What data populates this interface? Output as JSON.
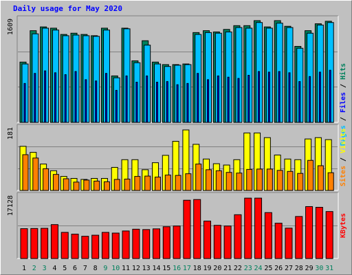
{
  "title": "Daily usage for May 2020",
  "colors": {
    "hits": "#00805c",
    "files": "#0000ff",
    "pages": "#00c0ff",
    "visits": "#ffff00",
    "sites": "#ff8000",
    "kbytes": "#ff0000",
    "weekend_label": "#00805c",
    "weekday_label": "#000000"
  },
  "chart_data": [
    {
      "type": "bar",
      "panel": "hits-files-pages",
      "y_max_label": "1609",
      "ylim": [
        0,
        1609
      ],
      "categories": [
        "1",
        "2",
        "3",
        "4",
        "5",
        "6",
        "7",
        "8",
        "9",
        "10",
        "11",
        "12",
        "13",
        "14",
        "15",
        "16",
        "17",
        "18",
        "19",
        "20",
        "21",
        "22",
        "23",
        "24",
        "25",
        "26",
        "27",
        "28",
        "29",
        "30",
        "31"
      ],
      "weekend_days": [
        "2",
        "3",
        "9",
        "10",
        "16",
        "17",
        "23",
        "24",
        "30",
        "31"
      ],
      "legend": [
        {
          "label": "Pages",
          "color": "#00c0ff"
        },
        {
          "label": "Files",
          "color": "#0000ff"
        },
        {
          "label": "Hits",
          "color": "#00805c"
        }
      ],
      "series": [
        {
          "name": "Hits",
          "values": [
            960,
            1460,
            1520,
            1500,
            1400,
            1420,
            1400,
            1380,
            1500,
            740,
            1500,
            980,
            1300,
            960,
            920,
            920,
            930,
            1430,
            1460,
            1440,
            1480,
            1540,
            1540,
            1620,
            1520,
            1620,
            1530,
            1210,
            1460,
            1570,
            1610
          ]
        },
        {
          "name": "Files",
          "values": [
            620,
            780,
            820,
            790,
            760,
            810,
            680,
            660,
            780,
            510,
            740,
            640,
            740,
            640,
            650,
            600,
            620,
            780,
            680,
            740,
            720,
            700,
            750,
            810,
            800,
            810,
            790,
            650,
            730,
            800,
            830
          ]
        },
        {
          "name": "Pages",
          "values": [
            930,
            1410,
            1500,
            1470,
            1380,
            1390,
            1380,
            1370,
            1470,
            710,
            1490,
            950,
            1230,
            930,
            890,
            910,
            920,
            1400,
            1430,
            1420,
            1440,
            1510,
            1500,
            1590,
            1500,
            1580,
            1510,
            1180,
            1420,
            1550,
            1590
          ]
        }
      ]
    },
    {
      "type": "bar",
      "panel": "sites-visits",
      "y_max_label": "181",
      "ylim": [
        0,
        181
      ],
      "categories": [
        "1",
        "2",
        "3",
        "4",
        "5",
        "6",
        "7",
        "8",
        "9",
        "10",
        "11",
        "12",
        "13",
        "14",
        "15",
        "16",
        "17",
        "18",
        "19",
        "20",
        "21",
        "22",
        "23",
        "24",
        "25",
        "26",
        "27",
        "28",
        "29",
        "30",
        "31"
      ],
      "legend": [
        {
          "label": "Sites",
          "color": "#ff8000"
        },
        {
          "label": "Visits",
          "color": "#ffff00"
        }
      ],
      "series": [
        {
          "name": "Visits",
          "values": [
            132,
            114,
            79,
            59,
            42,
            36,
            33,
            36,
            36,
            69,
            92,
            92,
            62,
            83,
            105,
            147,
            181,
            138,
            94,
            80,
            76,
            92,
            172,
            172,
            158,
            106,
            94,
            92,
            154,
            158,
            152
          ]
        },
        {
          "name": "Sites",
          "values": [
            107,
            97,
            65,
            48,
            35,
            25,
            31,
            28,
            26,
            33,
            34,
            42,
            43,
            40,
            46,
            45,
            50,
            79,
            62,
            59,
            54,
            52,
            63,
            64,
            64,
            60,
            57,
            51,
            90,
            74,
            53
          ]
        }
      ]
    },
    {
      "type": "bar",
      "panel": "kbytes",
      "y_max_label": "17128",
      "ylim": [
        0,
        17128
      ],
      "categories": [
        "1",
        "2",
        "3",
        "4",
        "5",
        "6",
        "7",
        "8",
        "9",
        "10",
        "11",
        "12",
        "13",
        "14",
        "15",
        "16",
        "17",
        "18",
        "19",
        "20",
        "21",
        "22",
        "23",
        "24",
        "25",
        "26",
        "27",
        "28",
        "29",
        "30",
        "31"
      ],
      "legend": [
        {
          "label": "KBytes",
          "color": "#ff0000"
        }
      ],
      "series": [
        {
          "name": "KBytes",
          "values": [
            8450,
            8500,
            8550,
            9600,
            7400,
            6900,
            6300,
            6600,
            7400,
            7200,
            7800,
            8300,
            8200,
            8400,
            9000,
            9200,
            16500,
            16700,
            10600,
            9400,
            9200,
            12400,
            17100,
            17100,
            13000,
            10000,
            8600,
            11900,
            14700,
            14500,
            13300
          ]
        }
      ]
    }
  ]
}
